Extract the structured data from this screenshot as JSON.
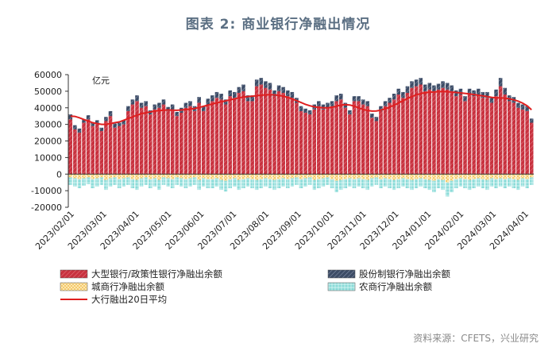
{
  "title": "图表 2:  商业银行净融出情况",
  "source": "资料来源：CFETS，兴业研究",
  "colors": {
    "big_bank": "#c8323f",
    "joint_stock": "#3d4c66",
    "city": "#f0b43a",
    "rural": "#76d6d3",
    "ma20": "#e01f1f"
  },
  "chart_data": {
    "type": "bar",
    "title": "",
    "ylabel": "亿元",
    "ylim": [
      -20000,
      60000
    ],
    "yticks": [
      -20000,
      -10000,
      0,
      10000,
      20000,
      30000,
      40000,
      50000,
      60000
    ],
    "xticks": [
      "2023/02/01",
      "2023/03/01",
      "2023/04/01",
      "2023/05/01",
      "2023/06/01",
      "2023/07/01",
      "2023/08/01",
      "2023/09/01",
      "2023/10/01",
      "2023/11/01",
      "2023/12/01",
      "2024/01/01",
      "2024/02/01",
      "2024/03/01",
      "2024/04/01"
    ],
    "legend": [
      "大型银行/政策性银行净融出余额",
      "股份制银行净融出余额",
      "城商行净融出余额",
      "农商行净融出余额",
      "大行融出20日平均"
    ],
    "series": [
      {
        "name": "大型银行/政策性银行净融出余额",
        "kind": "bar",
        "values": [
          33000,
          27000,
          25000,
          31000,
          33000,
          29000,
          30000,
          26000,
          32000,
          35000,
          28000,
          29000,
          30000,
          38000,
          42000,
          44000,
          40000,
          41000,
          36000,
          39000,
          40000,
          42000,
          38000,
          39000,
          35000,
          37000,
          40000,
          41000,
          38000,
          43000,
          38000,
          42000,
          44000,
          46000,
          45000,
          42000,
          47000,
          46000,
          49000,
          50000,
          44000,
          44000,
          53000,
          54000,
          52000,
          51000,
          47000,
          50000,
          49000,
          47000,
          46000,
          43000,
          38000,
          37000,
          36000,
          39000,
          41000,
          39000,
          40000,
          41000,
          44000,
          45000,
          40000,
          36000,
          44000,
          44000,
          42000,
          41000,
          34000,
          32000,
          38000,
          41000,
          43000,
          45000,
          48000,
          46000,
          49000,
          52000,
          53000,
          54000,
          50000,
          51000,
          50000,
          51000,
          52000,
          51000,
          50000,
          47000,
          48000,
          44000,
          48000,
          47000,
          48000,
          46000,
          46000,
          43000,
          47000,
          53000,
          48000,
          44000,
          43000,
          40000,
          39000,
          38000,
          31000
        ]
      },
      {
        "name": "股份制银行净融出余额",
        "kind": "bar",
        "values": [
          3000,
          2500,
          2500,
          2000,
          2500,
          2000,
          2500,
          2000,
          2500,
          3000,
          2500,
          2000,
          2500,
          3000,
          3000,
          3500,
          3000,
          3000,
          2500,
          3000,
          3000,
          3000,
          2500,
          3000,
          2500,
          3000,
          3000,
          3000,
          3000,
          3500,
          3000,
          3500,
          3500,
          3500,
          3500,
          3000,
          3500,
          3500,
          3500,
          4000,
          3500,
          3500,
          4000,
          4000,
          4000,
          4000,
          3500,
          3500,
          3500,
          3500,
          3500,
          3000,
          3000,
          2500,
          2500,
          3000,
          3000,
          3000,
          3000,
          3000,
          3500,
          3500,
          3000,
          2500,
          3000,
          3000,
          3000,
          3000,
          2500,
          2500,
          3000,
          3000,
          3000,
          3500,
          3500,
          3500,
          4000,
          4000,
          4000,
          4000,
          4000,
          4000,
          3500,
          3500,
          4000,
          4000,
          3500,
          3500,
          3500,
          3000,
          3500,
          3500,
          3500,
          3500,
          3500,
          3500,
          4000,
          5000,
          4000,
          3500,
          3500,
          3000,
          3000,
          3000,
          2500
        ]
      },
      {
        "name": "城商行净融出余额",
        "kind": "bar",
        "values": [
          -2000,
          -2500,
          -3000,
          -2500,
          -2000,
          -3000,
          -2500,
          -2000,
          -3500,
          -2500,
          -2000,
          -3000,
          -2500,
          -2000,
          -3000,
          -3500,
          -2500,
          -2000,
          -3000,
          -2500,
          -3500,
          -2000,
          -2500,
          -3000,
          -2000,
          -2500,
          -3000,
          -2500,
          -2000,
          -3500,
          -2500,
          -3000,
          -3000,
          -2500,
          -3500,
          -4000,
          -3000,
          -2500,
          -3500,
          -3000,
          -2500,
          -3000,
          -3500,
          -3000,
          -2500,
          -3000,
          -3500,
          -3000,
          -2500,
          -3000,
          -2500,
          -2000,
          -3000,
          -2500,
          -2000,
          -3500,
          -3000,
          -2500,
          -2000,
          -3000,
          -4000,
          -3500,
          -3000,
          -2500,
          -3000,
          -2500,
          -3000,
          -3500,
          -2500,
          -2000,
          -3000,
          -2500,
          -3000,
          -3500,
          -3000,
          -2500,
          -3000,
          -3500,
          -3000,
          -2500,
          -3000,
          -3500,
          -4000,
          -3000,
          -3500,
          -5000,
          -4000,
          -3000,
          -2500,
          -3000,
          -3500,
          -3000,
          -2500,
          -3000,
          -3500,
          -2500,
          -3000,
          -2500,
          -3000,
          -2500,
          -3000,
          -3500,
          -2500,
          -3000,
          -2000
        ]
      },
      {
        "name": "农商行净融出余额",
        "kind": "bar",
        "values": [
          -4500,
          -5000,
          -5500,
          -4500,
          -4000,
          -5500,
          -5000,
          -4500,
          -6000,
          -5000,
          -4500,
          -5500,
          -5000,
          -4500,
          -5500,
          -6000,
          -5000,
          -4500,
          -5500,
          -5000,
          -6000,
          -4500,
          -5000,
          -5500,
          -4500,
          -5000,
          -5500,
          -5000,
          -4500,
          -6000,
          -5000,
          -5500,
          -5500,
          -5000,
          -6000,
          -6500,
          -5500,
          -5000,
          -6000,
          -5500,
          -5000,
          -5500,
          -6000,
          -5500,
          -5000,
          -5500,
          -6000,
          -5500,
          -5000,
          -5500,
          -5000,
          -4500,
          -5500,
          -5000,
          -4500,
          -6000,
          -5500,
          -5000,
          -4500,
          -5500,
          -7000,
          -6000,
          -5500,
          -5000,
          -5500,
          -5000,
          -5500,
          -6000,
          -5000,
          -4500,
          -5500,
          -5000,
          -5500,
          -6000,
          -5500,
          -5000,
          -5500,
          -6000,
          -5500,
          -5000,
          -5500,
          -6000,
          -7000,
          -5500,
          -6000,
          -8500,
          -7000,
          -5500,
          -5000,
          -5500,
          -6000,
          -5500,
          -5000,
          -5500,
          -6000,
          -5000,
          -5500,
          -5000,
          -5500,
          -5000,
          -5500,
          -6000,
          -5000,
          -5500,
          -4500
        ]
      },
      {
        "name": "大行融出20日平均",
        "kind": "line",
        "values": [
          35000,
          34800,
          34000,
          33000,
          32000,
          31000,
          30500,
          30000,
          30000,
          30500,
          31000,
          31500,
          32500,
          33500,
          34500,
          35500,
          36500,
          37000,
          37500,
          38000,
          38300,
          38600,
          38700,
          38600,
          38500,
          38700,
          38900,
          39200,
          39600,
          40200,
          40900,
          41600,
          42300,
          43000,
          43600,
          44200,
          44800,
          45400,
          46000,
          46500,
          46800,
          47000,
          47300,
          47600,
          47800,
          47900,
          47800,
          47500,
          47000,
          46300,
          45400,
          44300,
          43200,
          42100,
          41200,
          40600,
          40200,
          40000,
          40000,
          40300,
          41000,
          41600,
          41900,
          41700,
          41000,
          40000,
          39000,
          38400,
          38000,
          38100,
          38600,
          39400,
          40400,
          41600,
          42900,
          44300,
          45600,
          46800,
          47800,
          48600,
          49100,
          49400,
          49600,
          49700,
          49800,
          49700,
          49500,
          49200,
          49000,
          48700,
          48400,
          48000,
          47600,
          47200,
          46800,
          46300,
          46000,
          46000,
          45800,
          45400,
          44800,
          44000,
          42800,
          41200,
          38800
        ]
      }
    ]
  }
}
